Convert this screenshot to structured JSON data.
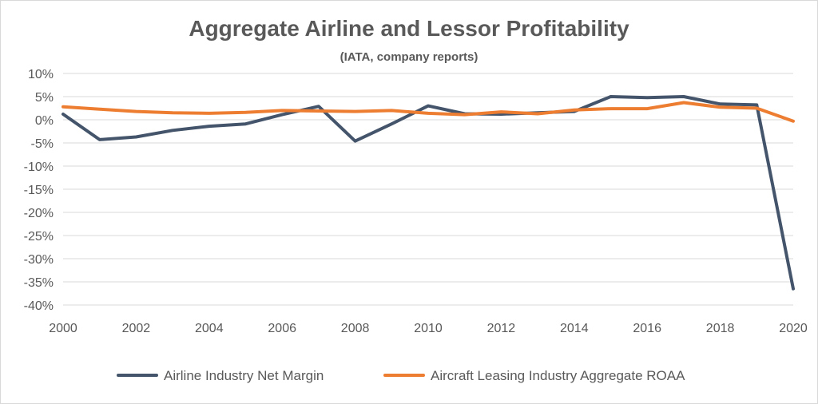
{
  "chart_data": {
    "type": "line",
    "title": "Aggregate Airline and Lessor Profitability",
    "subtitle": "(IATA, company reports)",
    "xlabel": "",
    "ylabel": "",
    "x": [
      2000,
      2001,
      2002,
      2003,
      2004,
      2005,
      2006,
      2007,
      2008,
      2009,
      2010,
      2011,
      2012,
      2013,
      2014,
      2015,
      2016,
      2017,
      2018,
      2019,
      2020
    ],
    "x_ticks": [
      "2000",
      "2002",
      "2004",
      "2006",
      "2008",
      "2010",
      "2012",
      "2014",
      "2016",
      "2018",
      "2020"
    ],
    "y_ticks": [
      "10%",
      "5%",
      "0%",
      "-5%",
      "-10%",
      "-15%",
      "-20%",
      "-25%",
      "-30%",
      "-35%",
      "-40%"
    ],
    "ylim": [
      -40,
      10
    ],
    "xlim": [
      2000,
      2020
    ],
    "grid": true,
    "legend_position": "bottom",
    "series": [
      {
        "name": "Airline Industry Net Margin",
        "color": "#44546a",
        "values": [
          1.2,
          -4.3,
          -3.7,
          -2.3,
          -1.4,
          -0.9,
          1.1,
          2.9,
          -4.6,
          -0.9,
          3.0,
          1.3,
          1.2,
          1.5,
          1.8,
          5.0,
          4.8,
          5.0,
          3.4,
          3.2,
          -36.5
        ]
      },
      {
        "name": "Aircraft Leasing Industry Aggregate ROAA",
        "color": "#ed7d31",
        "values": [
          2.8,
          2.3,
          1.8,
          1.5,
          1.4,
          1.6,
          2.0,
          1.9,
          1.8,
          2.0,
          1.4,
          1.1,
          1.7,
          1.3,
          2.1,
          2.4,
          2.4,
          3.7,
          2.7,
          2.5,
          -0.3
        ]
      }
    ]
  }
}
